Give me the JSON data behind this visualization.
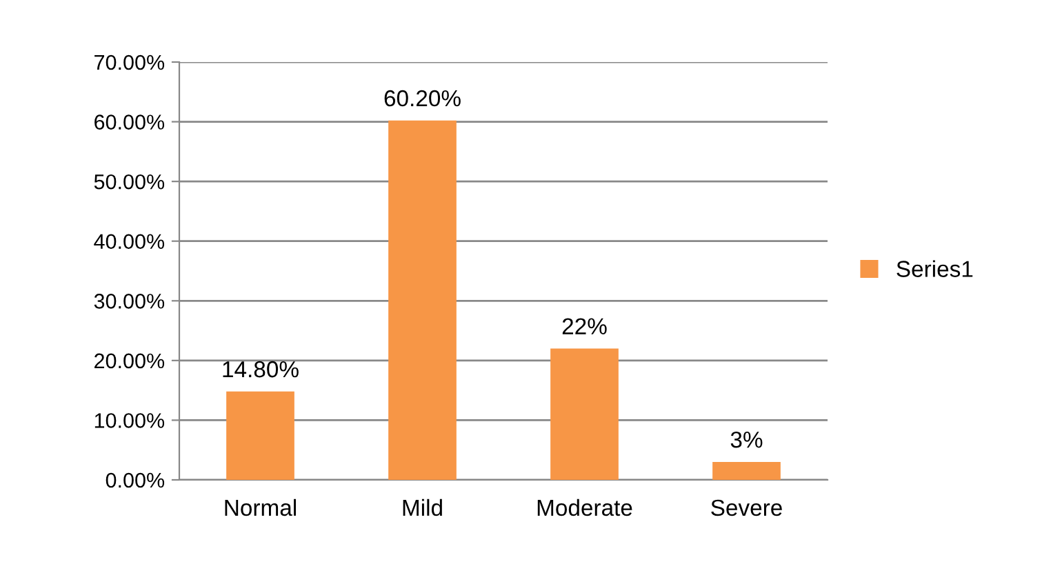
{
  "chart_data": {
    "type": "bar",
    "categories": [
      "Normal",
      "Mild",
      "Moderate",
      "Severe"
    ],
    "series": [
      {
        "name": "Series1",
        "color": "#f79646",
        "values": [
          14.8,
          60.2,
          22,
          3
        ],
        "value_labels": [
          "14.80%",
          "60.20%",
          "22%",
          "3%"
        ]
      }
    ],
    "ylim": [
      0,
      70
    ],
    "yticks": [
      {
        "value": 0,
        "label": "0.00%"
      },
      {
        "value": 10,
        "label": "10.00%"
      },
      {
        "value": 20,
        "label": "20.00%"
      },
      {
        "value": 30,
        "label": "30.00%"
      },
      {
        "value": 40,
        "label": "40.00%"
      },
      {
        "value": 50,
        "label": "50.00%"
      },
      {
        "value": 60,
        "label": "60.00%"
      },
      {
        "value": 70,
        "label": "70.00%"
      }
    ],
    "grid": "y",
    "legend": "right"
  }
}
